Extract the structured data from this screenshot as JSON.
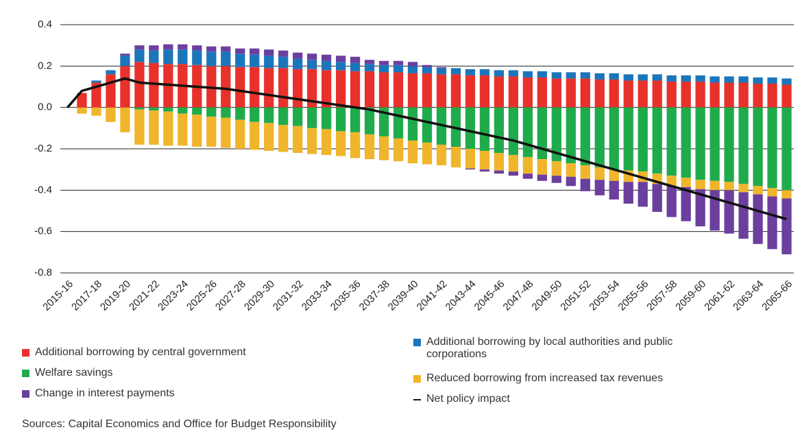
{
  "chart_data": {
    "type": "bar",
    "source": "Sources: Capital Economics and Office for Budget Responsibility",
    "categories": [
      "2015-16",
      null,
      "2017-18",
      null,
      "2019-20",
      null,
      "2021-22",
      null,
      "2023-24",
      null,
      "2025-26",
      null,
      "2027-28",
      null,
      "2029-30",
      null,
      "2031-32",
      null,
      "2033-34",
      null,
      "2035-36",
      null,
      "2037-38",
      null,
      "2039-40",
      null,
      "2041-42",
      null,
      "2043-44",
      null,
      "2045-46",
      null,
      "2047-48",
      null,
      "2049-50",
      null,
      "2051-52",
      null,
      "2053-54",
      null,
      "2055-56",
      null,
      "2057-58",
      null,
      "2059-60",
      null,
      "2061-62",
      null,
      "2063-64",
      null,
      "2065-66"
    ],
    "ylim": [
      -0.8,
      0.4
    ],
    "yticks": [
      0.4,
      0.2,
      {
        "value": 0,
        "label": "0.0"
      },
      -0.2,
      -0.4,
      -0.6,
      -0.8
    ],
    "grid": true,
    "stacked": true,
    "series": [
      {
        "name": "Additional borrowing by central government",
        "color": "#e8312a",
        "values": [
          0,
          0.07,
          0.12,
          0.16,
          0.2,
          0.22,
          0.215,
          0.21,
          0.21,
          0.205,
          0.2,
          0.2,
          0.195,
          0.195,
          0.19,
          0.19,
          0.185,
          0.185,
          0.18,
          0.18,
          0.175,
          0.175,
          0.17,
          0.17,
          0.165,
          0.165,
          0.16,
          0.16,
          0.155,
          0.155,
          0.15,
          0.15,
          0.145,
          0.145,
          0.14,
          0.14,
          0.14,
          0.135,
          0.135,
          0.13,
          0.13,
          0.13,
          0.125,
          0.125,
          0.125,
          0.12,
          0.12,
          0.12,
          0.115,
          0.115,
          0.11
        ]
      },
      {
        "name": "Additional borrowing by local authorities and public corporations",
        "color": "#1b75bb",
        "values": [
          0,
          0,
          0.01,
          0.02,
          0.05,
          0.06,
          0.06,
          0.07,
          0.07,
          0.07,
          0.07,
          0.07,
          0.065,
          0.06,
          0.06,
          0.055,
          0.05,
          0.045,
          0.045,
          0.04,
          0.04,
          0.035,
          0.035,
          0.035,
          0.035,
          0.03,
          0.03,
          0.03,
          0.03,
          0.03,
          0.03,
          0.03,
          0.03,
          0.03,
          0.03,
          0.03,
          0.03,
          0.03,
          0.03,
          0.03,
          0.03,
          0.03,
          0.03,
          0.03,
          0.03,
          0.03,
          0.03,
          0.03,
          0.03,
          0.03,
          0.03
        ]
      },
      {
        "name": "Welfare savings",
        "color": "#1fab4c",
        "values": [
          0,
          0,
          0,
          0,
          0,
          -0.01,
          -0.015,
          -0.02,
          -0.03,
          -0.035,
          -0.045,
          -0.05,
          -0.06,
          -0.07,
          -0.075,
          -0.085,
          -0.09,
          -0.1,
          -0.105,
          -0.115,
          -0.12,
          -0.13,
          -0.14,
          -0.15,
          -0.16,
          -0.17,
          -0.18,
          -0.19,
          -0.2,
          -0.21,
          -0.22,
          -0.23,
          -0.24,
          -0.25,
          -0.26,
          -0.27,
          -0.28,
          -0.29,
          -0.3,
          -0.305,
          -0.31,
          -0.32,
          -0.33,
          -0.34,
          -0.35,
          -0.355,
          -0.36,
          -0.37,
          -0.38,
          -0.39,
          -0.4
        ]
      },
      {
        "name": "Reduced borrowing from increased tax revenues",
        "color": "#f0b52b",
        "values": [
          0,
          -0.03,
          -0.04,
          -0.07,
          -0.12,
          -0.17,
          -0.165,
          -0.165,
          -0.155,
          -0.155,
          -0.145,
          -0.145,
          -0.14,
          -0.135,
          -0.135,
          -0.13,
          -0.13,
          -0.125,
          -0.125,
          -0.12,
          -0.125,
          -0.12,
          -0.115,
          -0.11,
          -0.11,
          -0.105,
          -0.1,
          -0.1,
          -0.095,
          -0.09,
          -0.085,
          -0.08,
          -0.08,
          -0.075,
          -0.07,
          -0.065,
          -0.065,
          -0.06,
          -0.055,
          -0.055,
          -0.05,
          -0.05,
          -0.05,
          -0.045,
          -0.045,
          -0.045,
          -0.04,
          -0.04,
          -0.04,
          -0.04,
          -0.04
        ]
      },
      {
        "name": "Change in interest payments",
        "color": "#6b3f9e",
        "values": [
          0,
          0,
          0,
          0,
          0.01,
          0.02,
          0.025,
          0.025,
          0.025,
          0.025,
          0.025,
          0.025,
          0.025,
          0.03,
          0.03,
          0.03,
          0.03,
          0.03,
          0.03,
          0.03,
          0.03,
          0.02,
          0.02,
          0.02,
          0.02,
          0.01,
          0.005,
          0,
          -0.005,
          -0.01,
          -0.015,
          -0.02,
          -0.025,
          -0.03,
          -0.035,
          -0.045,
          -0.06,
          -0.075,
          -0.09,
          -0.105,
          -0.12,
          -0.135,
          -0.15,
          -0.165,
          -0.18,
          -0.195,
          -0.21,
          -0.225,
          -0.24,
          -0.255,
          -0.27
        ]
      },
      {
        "name": "Net policy impact",
        "type": "line",
        "color": "#111111",
        "values": [
          0,
          0.08,
          0.1,
          0.12,
          0.14,
          0.12,
          0.115,
          0.11,
          0.105,
          0.1,
          0.095,
          0.09,
          0.08,
          0.07,
          0.06,
          0.05,
          0.04,
          0.03,
          0.02,
          0.01,
          0,
          -0.01,
          -0.025,
          -0.04,
          -0.055,
          -0.07,
          -0.085,
          -0.1,
          -0.115,
          -0.13,
          -0.145,
          -0.16,
          -0.18,
          -0.2,
          -0.22,
          -0.24,
          -0.26,
          -0.28,
          -0.3,
          -0.32,
          -0.34,
          -0.36,
          -0.38,
          -0.4,
          -0.42,
          -0.44,
          -0.46,
          -0.48,
          -0.5,
          -0.52,
          -0.54
        ]
      }
    ]
  }
}
